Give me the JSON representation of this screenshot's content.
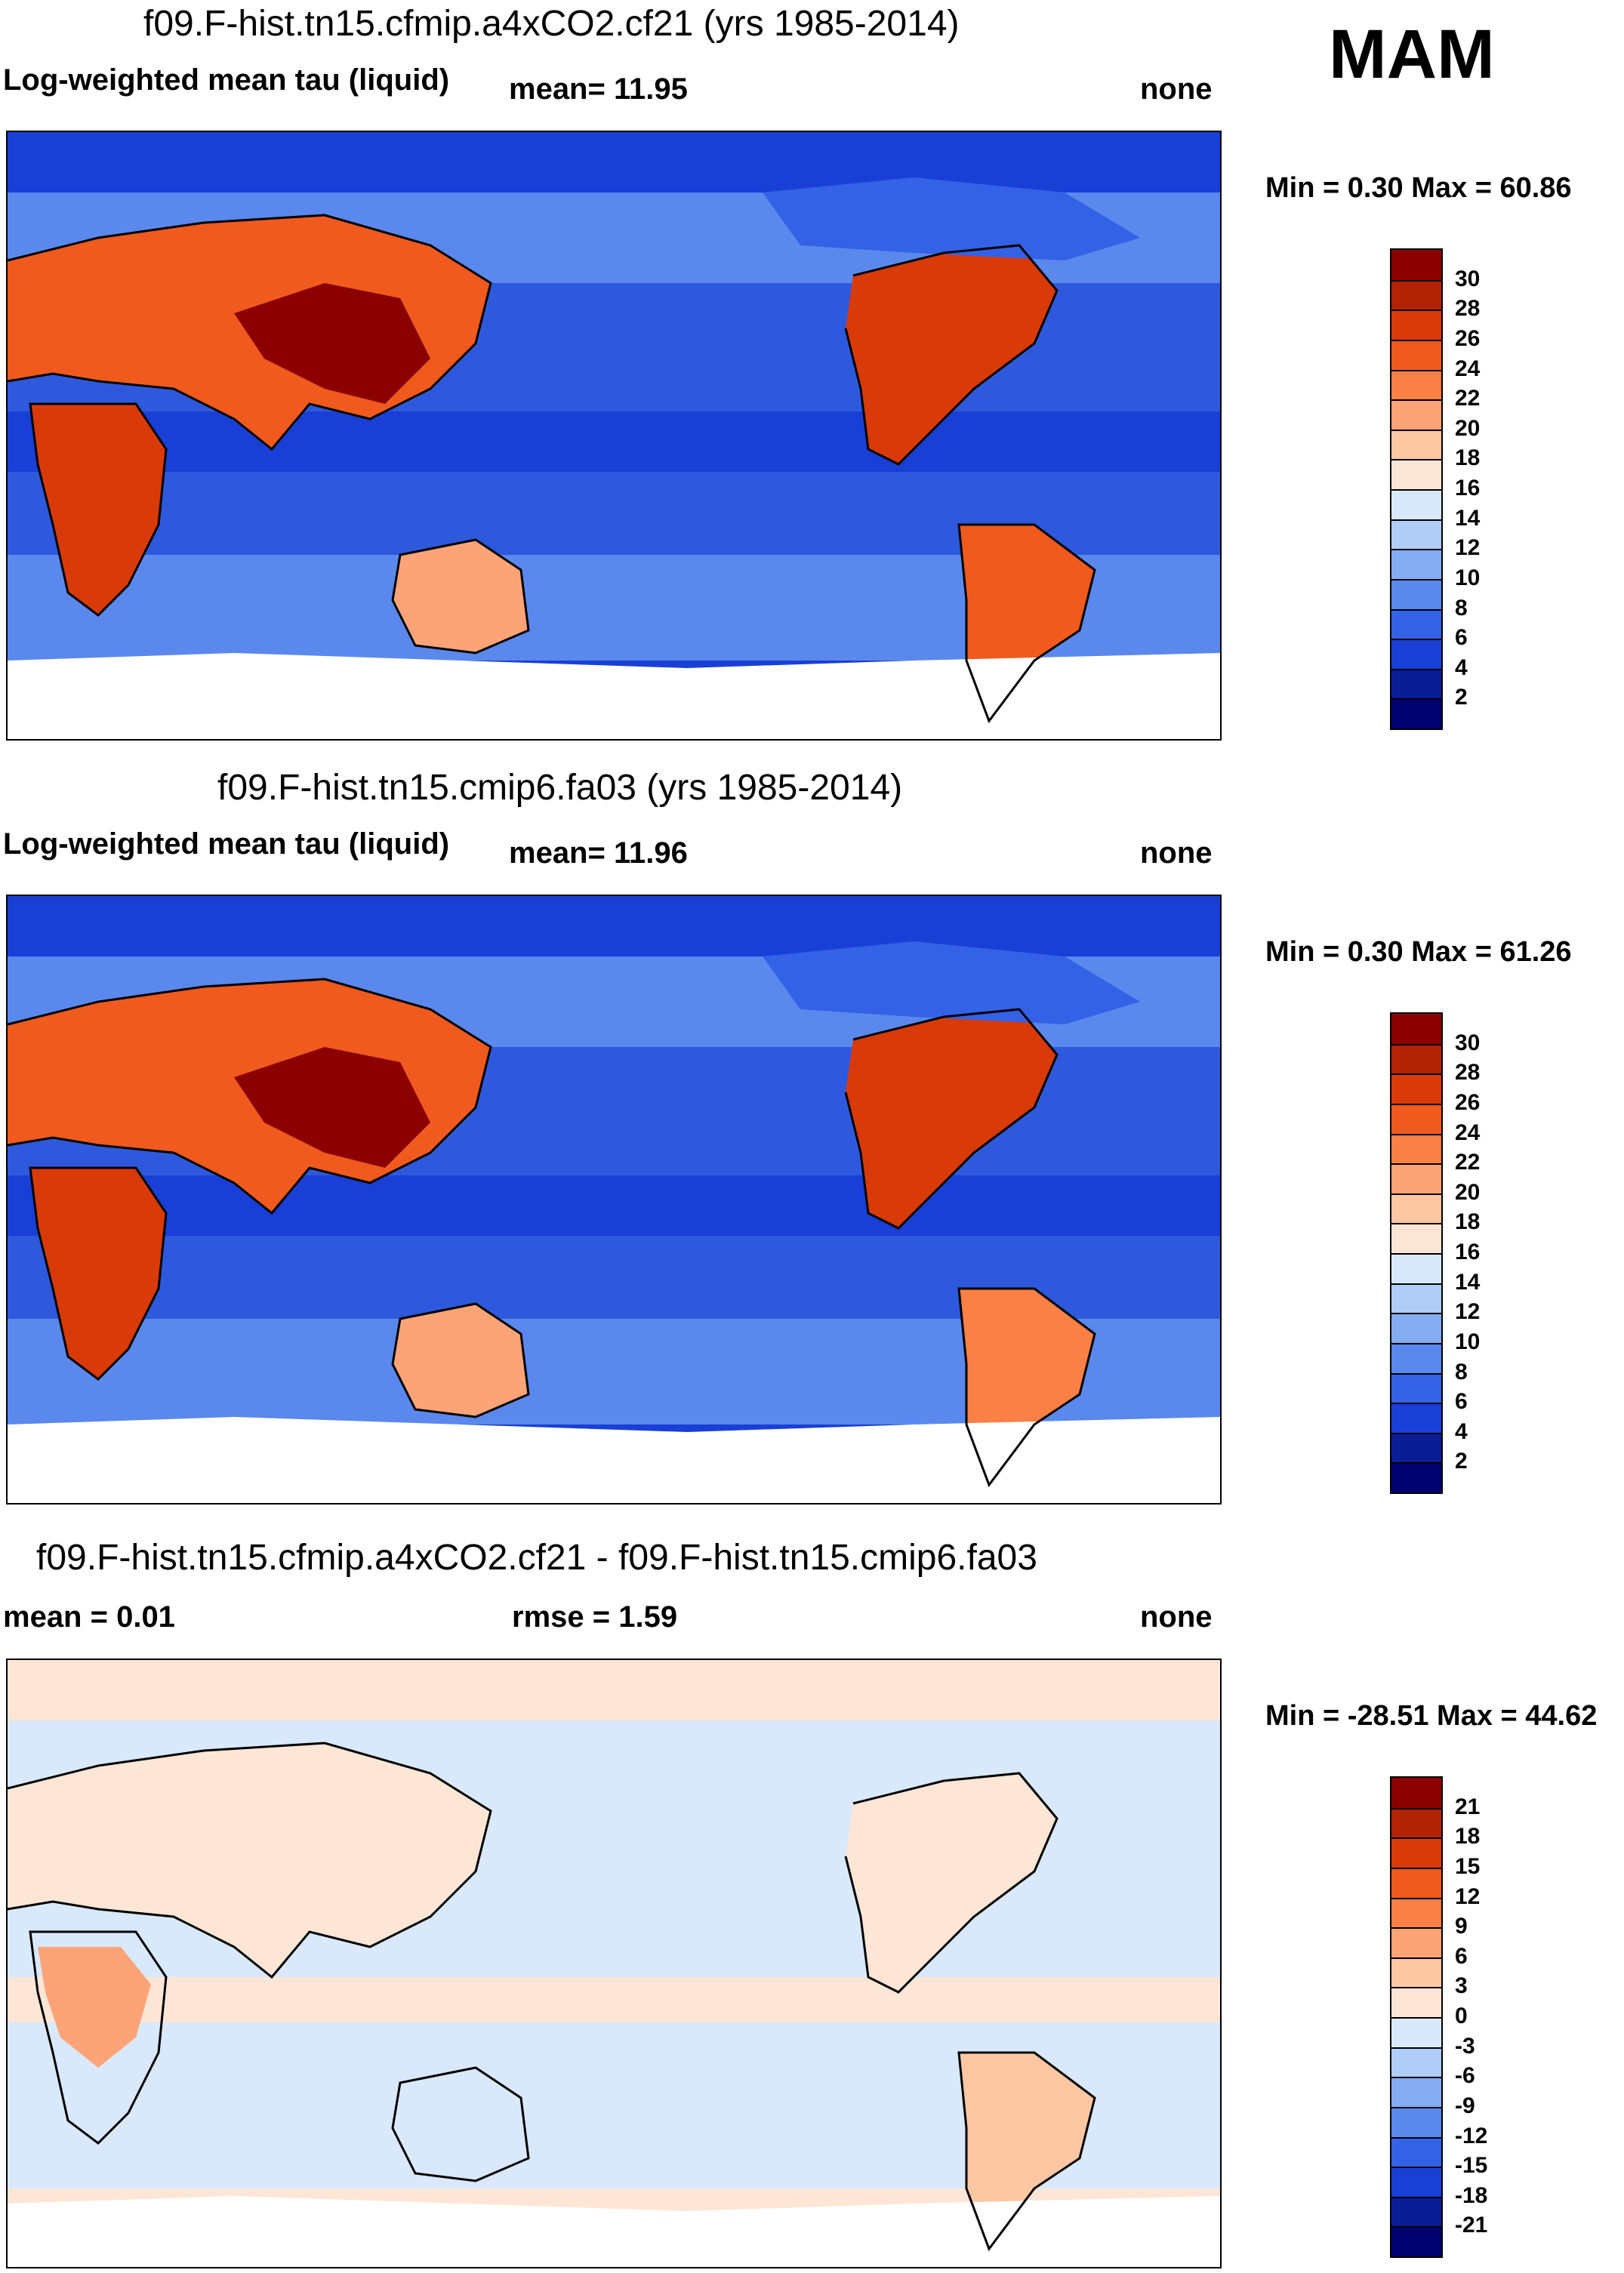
{
  "season": "MAM",
  "panels": [
    {
      "title": "f09.F-hist.tn15.cfmip.a4xCO2.cf21 (yrs 1985-2014)",
      "variable": "Log-weighted mean tau (liquid)",
      "stat1": "mean=  11.95",
      "stat2": "",
      "units": "none",
      "minmax": "Min =   0.30 Max =  60.86",
      "kind": "abs",
      "colorbar_labels": [
        "30",
        "28",
        "26",
        "24",
        "22",
        "20",
        "18",
        "16",
        "14",
        "12",
        "10",
        "8",
        "6",
        "4",
        "2"
      ]
    },
    {
      "title": "f09.F-hist.tn15.cmip6.fa03 (yrs 1985-2014)",
      "variable": "Log-weighted mean tau (liquid)",
      "stat1": "mean=  11.96",
      "stat2": "",
      "units": "none",
      "minmax": "Min =   0.30 Max =  61.26",
      "kind": "abs",
      "colorbar_labels": [
        "30",
        "28",
        "26",
        "24",
        "22",
        "20",
        "18",
        "16",
        "14",
        "12",
        "10",
        "8",
        "6",
        "4",
        "2"
      ]
    },
    {
      "title": "f09.F-hist.tn15.cfmip.a4xCO2.cf21 - f09.F-hist.tn15.cmip6.fa03",
      "variable": "mean =   0.01",
      "stat1": "",
      "stat2": "rmse =   1.59",
      "units": "none",
      "minmax": "Min = -28.51 Max =  44.62",
      "kind": "diff",
      "colorbar_labels": [
        "21",
        "18",
        "15",
        "12",
        "9",
        "6",
        "3",
        "0",
        "-3",
        "-6",
        "-9",
        "-12",
        "-15",
        "-18",
        "-21"
      ]
    }
  ],
  "colors": {
    "abs_scale": [
      "#8b0000",
      "#b22204",
      "#d93a0a",
      "#f05a1e",
      "#fa8046",
      "#fca478",
      "#fdc7a4",
      "#fbe6d6",
      "#d7e8fb",
      "#b0cdf7",
      "#86acf2",
      "#5b88ec",
      "#3462e6",
      "#1a3fd6",
      "#0a1d96",
      "#000070"
    ],
    "diff_scale": [
      "#8b0000",
      "#b22204",
      "#d93a0a",
      "#f05a1e",
      "#fa8046",
      "#fca478",
      "#fdc7a4",
      "#fde6d6",
      "#d9e9fb",
      "#b0cdf7",
      "#86acf2",
      "#5b88ec",
      "#3462e6",
      "#1a3fd6",
      "#0a1d96",
      "#000070"
    ],
    "ocean_abs": "#2f59dc",
    "ocean_abs_light": "#5e88ee",
    "ocean_diff": "#d9e9fb",
    "land_hot": "#d9480f",
    "land_warm": "#f58a5a",
    "land_light": "#fbc7a6",
    "ice": "#ffffff"
  }
}
